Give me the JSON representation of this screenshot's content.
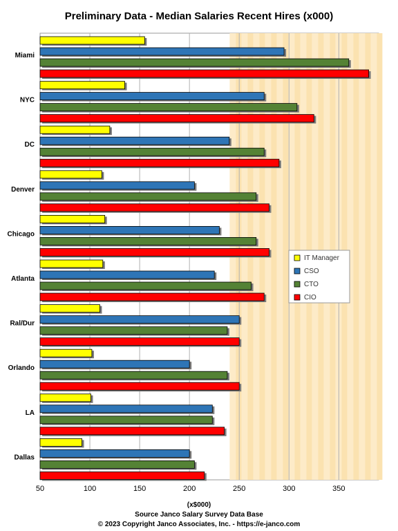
{
  "chart_data": {
    "type": "bar",
    "orientation": "horizontal",
    "title": "Preliminary Data - Median Salaries Recent Hires (x000)",
    "xlabel": "(x$000)",
    "source": "Source Janco Salary Survey Data Base",
    "copyright": "© 2023 Copyright Janco Associates, Inc. - https://e-janco.com",
    "categories": [
      "Miami",
      "NYC",
      "DC",
      "Denver",
      "Chicago",
      "Atlanta",
      "Ral/Dur",
      "Orlando",
      "LA",
      "Dallas"
    ],
    "xlim": [
      50,
      390
    ],
    "xticks": [
      50,
      100,
      150,
      200,
      250,
      300,
      350
    ],
    "grid": true,
    "legend_position": "right",
    "series": [
      {
        "name": "IT Manager",
        "color": "#ffff00",
        "values": [
          155,
          135,
          120,
          112,
          115,
          113,
          110,
          102,
          101,
          92
        ]
      },
      {
        "name": "CSO",
        "color": "#2e75b6",
        "values": [
          295,
          275,
          240,
          205,
          230,
          225,
          250,
          200,
          223,
          200
        ]
      },
      {
        "name": "CTO",
        "color": "#548235",
        "values": [
          360,
          308,
          275,
          267,
          267,
          262,
          238,
          238,
          223,
          205
        ]
      },
      {
        "name": "CIO",
        "color": "#ff0000",
        "values": [
          380,
          325,
          290,
          280,
          280,
          275,
          250,
          250,
          235,
          215
        ]
      }
    ]
  }
}
